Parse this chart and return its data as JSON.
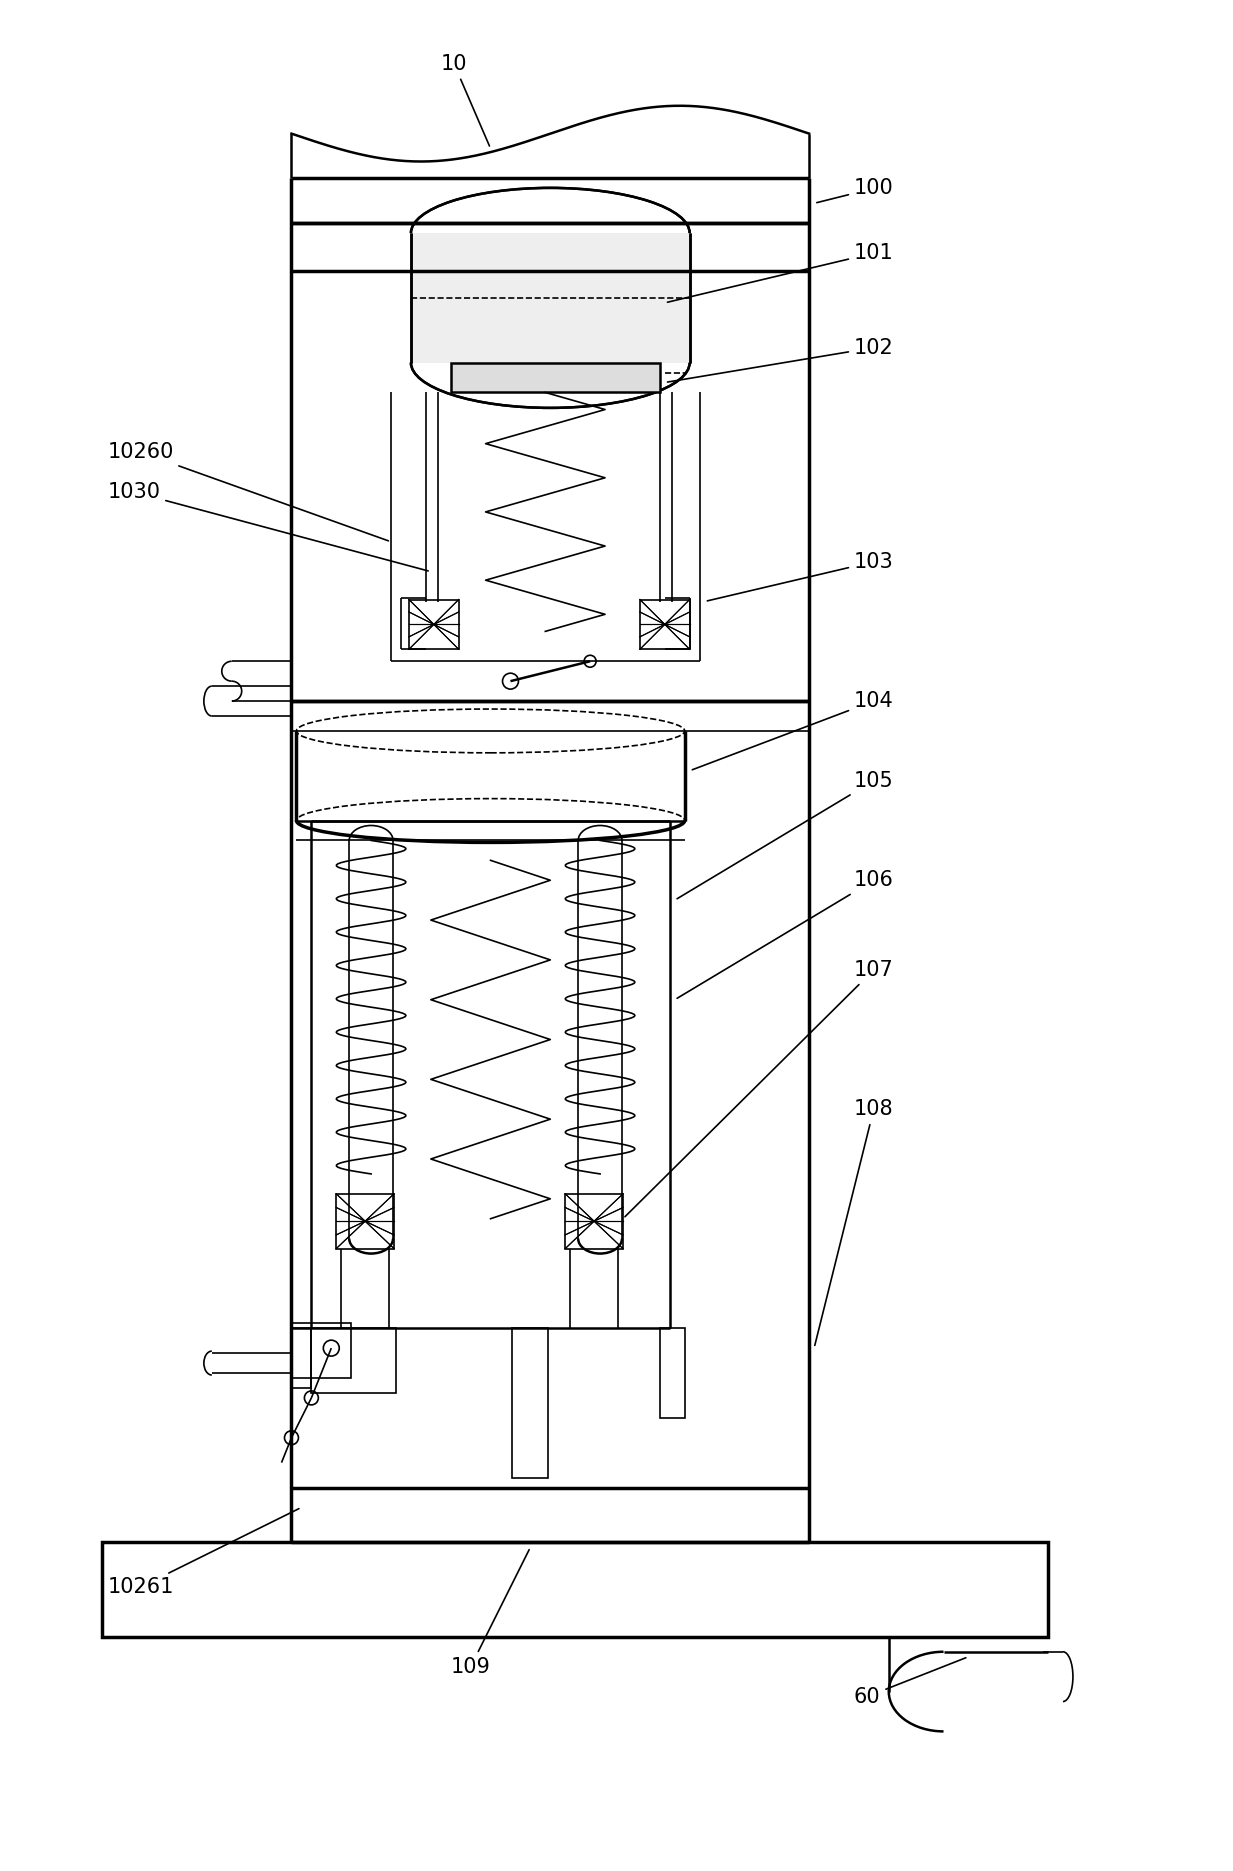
{
  "bg_color": "#ffffff",
  "line_color": "#000000",
  "lw_thin": 1.2,
  "lw_mid": 1.8,
  "lw_thick": 2.5,
  "font_size": 15,
  "fig_w": 12.33,
  "fig_h": 18.71,
  "dpi": 100
}
